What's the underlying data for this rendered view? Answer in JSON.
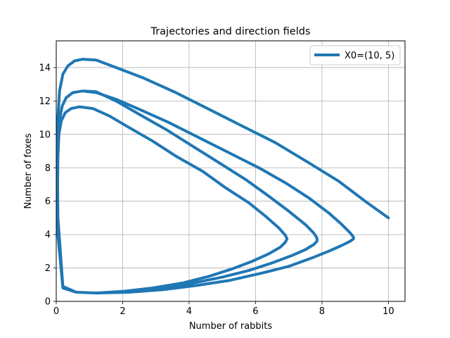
{
  "chart_data": {
    "type": "line",
    "title": "Trajectories and direction fields",
    "xlabel": "Number of rabbits",
    "ylabel": "Number of foxes",
    "xlim": [
      0,
      10.5
    ],
    "ylim": [
      0,
      15.6
    ],
    "xticks": [
      0,
      2,
      4,
      6,
      8,
      10
    ],
    "yticks": [
      0,
      2,
      4,
      6,
      8,
      10,
      12,
      14
    ],
    "grid": true,
    "legend_position": "top-right",
    "series_color": "#1f77b4",
    "series": [
      {
        "name": "X0=(10, 5)",
        "x": [
          10.0,
          9.3,
          8.5,
          7.6,
          6.6,
          5.6,
          4.6,
          3.6,
          2.6,
          1.8,
          1.2,
          0.8,
          0.55,
          0.35,
          0.2,
          0.1,
          0.05,
          0.04,
          0.04,
          0.05,
          0.2,
          0.6,
          1.2,
          2.2,
          3.2,
          4.2,
          5.2,
          6.2,
          7.0,
          7.7,
          8.2,
          8.6,
          8.85,
          8.95,
          8.95,
          8.85,
          8.6,
          8.2,
          7.6,
          6.9,
          6.1,
          5.2,
          4.3,
          3.4,
          2.5,
          1.8,
          1.2,
          0.8,
          0.5,
          0.3,
          0.18,
          0.1,
          0.06,
          0.04,
          0.04,
          0.05,
          0.2,
          0.6,
          1.2,
          2.0,
          3.0,
          4.0,
          5.0,
          5.8,
          6.5,
          7.1,
          7.5,
          7.75,
          7.85,
          7.85,
          7.75,
          7.5,
          7.0,
          6.4,
          5.7,
          4.9,
          4.1,
          3.3,
          2.5,
          1.8,
          1.2,
          0.8,
          0.5,
          0.3,
          0.18,
          0.1,
          0.06,
          0.04,
          0.04,
          0.05,
          0.2,
          0.6,
          1.2,
          2.0,
          2.9,
          3.8,
          4.6,
          5.3,
          5.9,
          6.4,
          6.75,
          6.9,
          6.95,
          6.9,
          6.7,
          6.3,
          5.8,
          5.1,
          4.4,
          3.6,
          2.9,
          2.2,
          1.6,
          1.1,
          0.7,
          0.45,
          0.27,
          0.15,
          0.08,
          0.05,
          0.04,
          0.04
        ],
        "y": [
          5.0,
          6.0,
          7.2,
          8.3,
          9.5,
          10.5,
          11.5,
          12.5,
          13.4,
          14.0,
          14.45,
          14.5,
          14.4,
          14.1,
          13.6,
          12.6,
          11.0,
          9.0,
          7.0,
          5.0,
          0.9,
          0.55,
          0.5,
          0.55,
          0.7,
          0.95,
          1.25,
          1.7,
          2.1,
          2.6,
          3.0,
          3.35,
          3.6,
          3.75,
          3.85,
          4.1,
          4.6,
          5.3,
          6.2,
          7.1,
          8.0,
          8.9,
          9.8,
          10.7,
          11.5,
          12.1,
          12.5,
          12.6,
          12.5,
          12.2,
          11.7,
          10.9,
          9.7,
          8.0,
          6.0,
          4.0,
          0.85,
          0.55,
          0.5,
          0.55,
          0.75,
          1.05,
          1.45,
          1.85,
          2.3,
          2.75,
          3.1,
          3.4,
          3.6,
          3.8,
          4.1,
          4.6,
          5.4,
          6.3,
          7.3,
          8.3,
          9.3,
          10.3,
          11.2,
          12.0,
          12.55,
          12.6,
          12.5,
          12.2,
          11.7,
          10.9,
          9.7,
          8.0,
          6.0,
          4.0,
          0.8,
          0.55,
          0.5,
          0.6,
          0.8,
          1.1,
          1.5,
          1.95,
          2.4,
          2.85,
          3.25,
          3.55,
          3.75,
          3.95,
          4.4,
          5.1,
          5.9,
          6.8,
          7.8,
          8.7,
          9.6,
          10.4,
          11.1,
          11.55,
          11.65,
          11.55,
          11.3,
          10.8,
          10.0,
          8.7,
          7.0,
          5.0
        ]
      }
    ]
  }
}
